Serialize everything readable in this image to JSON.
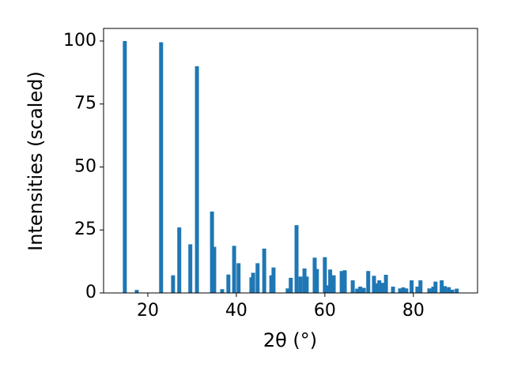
{
  "chart_data": {
    "type": "bar",
    "x": [
      14.8,
      17.5,
      23.0,
      25.7,
      27.1,
      29.6,
      31.1,
      34.5,
      35.0,
      36.8,
      38.2,
      39.5,
      40.5,
      43.4,
      43.8,
      44.8,
      46.3,
      47.9,
      48.4,
      51.6,
      52.3,
      53.6,
      54.5,
      55.4,
      55.9,
      57.7,
      58.2,
      60.0,
      60.5,
      61.2,
      62.0,
      63.8,
      64.5,
      66.3,
      67.3,
      68.0,
      68.8,
      69.8,
      71.1,
      71.6,
      72.3,
      73.0,
      73.8,
      75.4,
      77.0,
      77.7,
      78.4,
      79.6,
      80.9,
      81.6,
      83.6,
      84.5,
      85.0,
      86.4,
      87.1,
      88.0,
      88.8,
      89.8
    ],
    "values": [
      100,
      1.2,
      99.5,
      7,
      26,
      19.3,
      90,
      32.3,
      18.3,
      1.5,
      7.3,
      18.7,
      11.8,
      6.2,
      8,
      11.8,
      17.6,
      7,
      10.1,
      1.8,
      6,
      26.9,
      6.5,
      9.7,
      6.5,
      14,
      9.5,
      14.2,
      3,
      9.3,
      7,
      8.7,
      9,
      5,
      1.7,
      2.5,
      2,
      8.7,
      6.8,
      3.8,
      5,
      4,
      7.2,
      2.5,
      1.8,
      2.2,
      1.8,
      5,
      2.5,
      5,
      1.8,
      2.5,
      4.5,
      5,
      2.7,
      2.3,
      1.3,
      1.7
    ],
    "color": "#1f77b4",
    "xlabel": "2θ (°)",
    "ylabel": "Intensities (scaled)",
    "xlim": [
      10,
      94.5
    ],
    "ylim": [
      0,
      105
    ],
    "xticks": [
      20,
      40,
      60,
      80
    ],
    "yticks": [
      0,
      25,
      50,
      75,
      100
    ]
  }
}
